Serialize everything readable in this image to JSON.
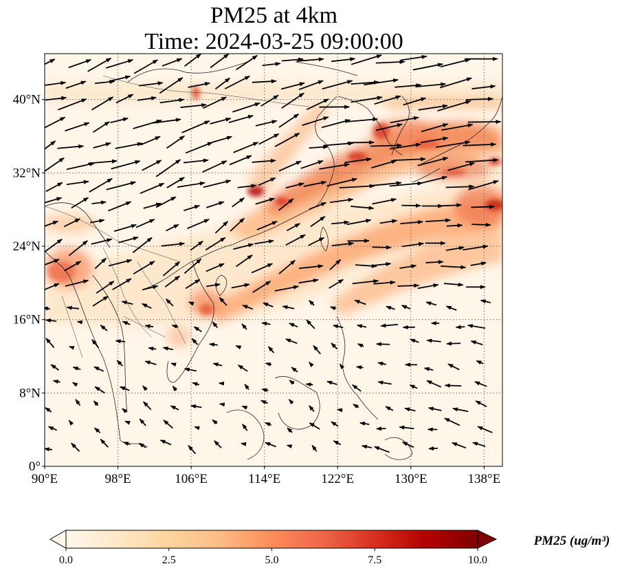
{
  "map": {
    "title_line1": "PM25 at 4km",
    "title_line2": "Time: 2024-03-25 09:00:00",
    "extent": {
      "lon_min": 90,
      "lon_max": 140,
      "lat_min": 0,
      "lat_max": 45
    },
    "lon_ticks": [
      {
        "value": 90,
        "label": "90°E"
      },
      {
        "value": 98,
        "label": "98°E"
      },
      {
        "value": 106,
        "label": "106°E"
      },
      {
        "value": 114,
        "label": "114°E"
      },
      {
        "value": 122,
        "label": "122°E"
      },
      {
        "value": 130,
        "label": "130°E"
      },
      {
        "value": 138,
        "label": "138°E"
      }
    ],
    "lat_ticks": [
      {
        "value": 0,
        "label": "0°"
      },
      {
        "value": 8,
        "label": "8°N"
      },
      {
        "value": 16,
        "label": "16°N"
      },
      {
        "value": 24,
        "label": "24°N"
      },
      {
        "value": 32,
        "label": "32°N"
      },
      {
        "value": 40,
        "label": "40°N"
      }
    ],
    "gridlines": "dotted",
    "variable": "PM25",
    "level": "4km",
    "wind_vectors": "shown"
  },
  "colorbar": {
    "label": "PM25 (ug/m³)",
    "cmap": "OrRd",
    "min": 0.0,
    "max": 10.0,
    "extend": "both",
    "ticks": [
      {
        "value": 0.0,
        "label": "0.0"
      },
      {
        "value": 2.5,
        "label": "2.5"
      },
      {
        "value": 5.0,
        "label": "5.0"
      },
      {
        "value": 7.5,
        "label": "7.5"
      },
      {
        "value": 10.0,
        "label": "10.0"
      }
    ],
    "colors": [
      "#fff7ec",
      "#fee8c8",
      "#fdd49e",
      "#fdbb84",
      "#fc8d59",
      "#ef6548",
      "#d7301f",
      "#b30000",
      "#7f0000"
    ]
  }
}
